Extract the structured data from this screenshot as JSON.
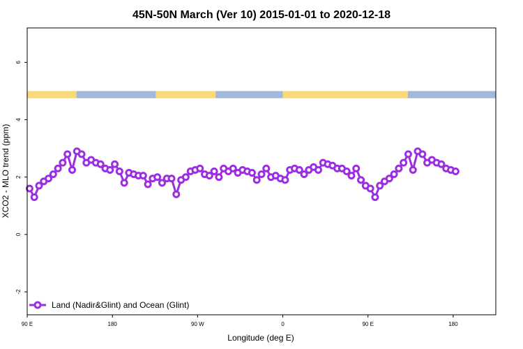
{
  "chart_data": {
    "type": "line",
    "title": "45N-50N March (Ver 10)   2015-01-01 to 2020-12-18",
    "xlabel": "Longitude (deg E)",
    "ylabel": "XCO2 - MLO trend (ppm)",
    "xlim": [
      90,
      585
    ],
    "ylim": [
      -2.8,
      7.2
    ],
    "x_ticks": [
      {
        "value": 90,
        "label": "90 E"
      },
      {
        "value": 180,
        "label": "180"
      },
      {
        "value": 270,
        "label": "90 W"
      },
      {
        "value": 360,
        "label": "0"
      },
      {
        "value": 450,
        "label": "90 E"
      },
      {
        "value": 540,
        "label": "180"
      }
    ],
    "y_ticks": [
      {
        "value": -2,
        "label": "-2"
      },
      {
        "value": 0,
        "label": "0"
      },
      {
        "value": 2,
        "label": "2"
      },
      {
        "value": 4,
        "label": "4"
      },
      {
        "value": 6,
        "label": "6"
      }
    ],
    "series": [
      {
        "name": "Land (Nadir&Glint) and Ocean (Glint)",
        "color": "#9b2fe0",
        "x": [
          92.5,
          97.5,
          102.5,
          107.5,
          112.5,
          117.5,
          122.5,
          127.5,
          132.5,
          137.5,
          142.5,
          147.5,
          152.5,
          157.5,
          162.5,
          167.5,
          172.5,
          177.5,
          182.5,
          187.5,
          192.5,
          197.5,
          202.5,
          207.5,
          212.5,
          217.5,
          222.5,
          227.5,
          232.5,
          237.5,
          242.5,
          247.5,
          252.5,
          257.5,
          262.5,
          267.5,
          272.5,
          277.5,
          282.5,
          287.5,
          292.5,
          297.5,
          302.5,
          307.5,
          312.5,
          317.5,
          322.5,
          327.5,
          332.5,
          337.5,
          342.5,
          347.5,
          352.5,
          357.5,
          362.5,
          367.5,
          372.5,
          377.5,
          382.5,
          387.5,
          392.5,
          397.5,
          402.5,
          407.5,
          412.5,
          417.5,
          422.5,
          427.5,
          432.5,
          437.5,
          442.5,
          447.5,
          452.5,
          457.5,
          462.5,
          467.5,
          472.5,
          477.5,
          482.5,
          487.5,
          492.5,
          497.5,
          502.5,
          507.5,
          512.5,
          517.5,
          522.5,
          527.5,
          532.5,
          537.5,
          542.5
        ],
        "y": [
          1.6,
          1.3,
          1.7,
          1.85,
          1.95,
          2.1,
          2.3,
          2.5,
          2.8,
          2.25,
          2.9,
          2.8,
          2.5,
          2.6,
          2.5,
          2.45,
          2.3,
          2.25,
          2.45,
          2.2,
          1.8,
          2.15,
          2.1,
          2.05,
          2.05,
          1.75,
          1.95,
          2.0,
          1.8,
          1.95,
          1.95,
          1.4,
          1.9,
          2.0,
          2.2,
          2.25,
          2.3,
          2.1,
          2.05,
          2.2,
          2.0,
          2.3,
          2.2,
          2.3,
          2.15,
          2.25,
          2.2,
          2.15,
          1.9,
          2.1,
          2.3,
          2.0,
          2.05,
          1.95,
          1.9,
          2.25,
          2.3,
          2.25,
          2.1,
          2.25,
          2.35,
          2.25,
          2.5,
          2.45,
          2.4,
          2.3,
          2.3,
          2.2,
          2.05,
          2.3,
          1.9,
          1.7,
          1.6,
          1.3,
          1.7,
          1.85,
          1.95,
          2.1,
          2.3,
          2.5,
          2.8,
          2.25,
          2.9,
          2.8,
          2.5,
          2.6,
          2.5,
          2.45,
          2.3,
          2.25,
          2.2
        ]
      }
    ],
    "legend": {
      "position": "bottom-left"
    },
    "surface_strip": {
      "y_range": [
        4.75,
        5.0
      ],
      "land_color": "#f9d87a",
      "ocean_color": "#a3b8d9",
      "segments": [
        {
          "x0": 90,
          "x1": 142,
          "type": "land"
        },
        {
          "x0": 142,
          "x1": 226,
          "type": "ocean"
        },
        {
          "x0": 226,
          "x1": 289,
          "type": "land"
        },
        {
          "x0": 289,
          "x1": 360,
          "type": "ocean"
        },
        {
          "x0": 360,
          "x1": 440,
          "type": "land"
        },
        {
          "x0": 440,
          "x1": 492,
          "type": "land"
        },
        {
          "x0": 492,
          "x1": 585,
          "type": "ocean"
        }
      ]
    }
  }
}
